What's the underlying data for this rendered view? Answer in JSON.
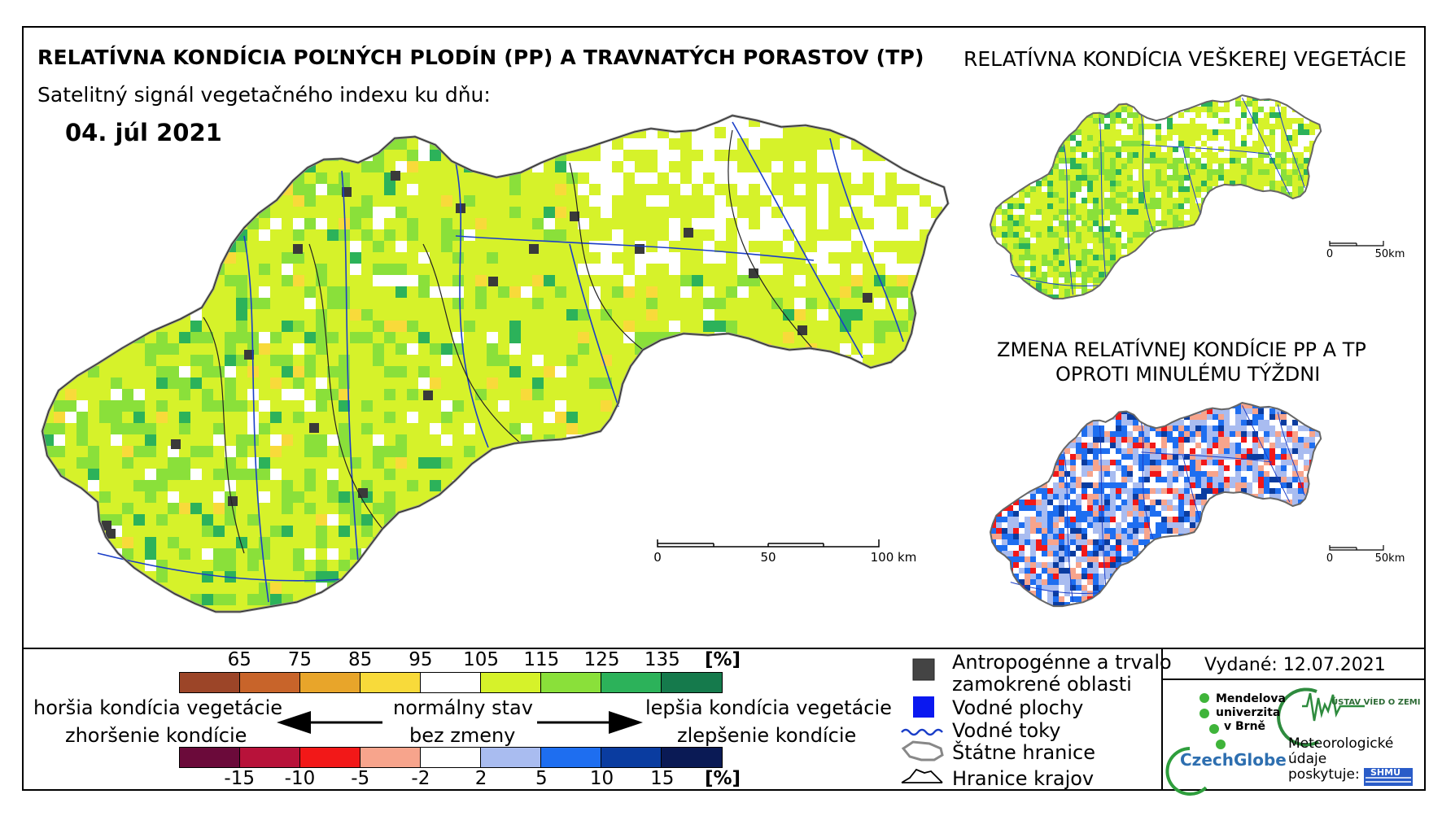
{
  "header": {
    "title": "RELATÍVNA KONDÍCIA POĽNÝCH PLODÍN (PP) A TRAVNATÝCH PORASTOV (TP)",
    "subtitle": "Satelitný signál vegetačného indexu ku dňu:",
    "date": "04. júl 2021"
  },
  "inset_vegetation": {
    "title": "RELATÍVNA KONDÍCIA VEŠKEREJ VEGETÁCIE",
    "scale_labels": [
      "0",
      "50km"
    ]
  },
  "inset_change": {
    "title_line1": "ZMENA RELATÍVNEJ KONDÍCIE PP A TP",
    "title_line2": "OPROTI MINULÉMU TÝŽDNI",
    "scale_labels": [
      "0",
      "50km"
    ]
  },
  "main_scale": {
    "labels": [
      "0",
      "50",
      "100 km"
    ]
  },
  "legend_condition": {
    "labels": [
      "65",
      "75",
      "85",
      "95",
      "105",
      "115",
      "125",
      "135"
    ],
    "unit": "[%]",
    "colors": [
      "#9c4528",
      "#c8642a",
      "#e8a52a",
      "#f8da3a",
      "#ffffff",
      "#d6f22a",
      "#8ae03a",
      "#2cb25a",
      "#157a4c"
    ]
  },
  "legend_change": {
    "labels": [
      "-15",
      "-10",
      "-5",
      "-2",
      "2",
      "5",
      "10",
      "15"
    ],
    "unit": "[%]",
    "colors": [
      "#6b0a3a",
      "#b8123a",
      "#f21818",
      "#f7a48c",
      "#ffffff",
      "#a9bcf0",
      "#1e6ef0",
      "#0a3ca0",
      "#0a1a55"
    ]
  },
  "arrows": {
    "worse_line1": "horšia kondícia vegetácie",
    "worse_line2": "zhoršenie kondície",
    "normal_line1": "normálny stav",
    "normal_line2": "bez zmeny",
    "better_line1": "lepšia kondícia vegetácie",
    "better_line2": "zlepšenie kondície"
  },
  "legend_symbols": {
    "anthropogenic_line1": "Antropogénne a trvalo",
    "anthropogenic_line2": "zamokrené oblasti",
    "water_bodies": "Vodné plochy",
    "rivers": "Vodné toky",
    "state_border": "Štátne hranice",
    "regions_border": "Hranice krajov"
  },
  "footer": {
    "issued": "Vydané: 12.07.2021",
    "mendel_line1": "Mendelova",
    "mendel_line2": "univerzita",
    "mendel_line3": "v Brně",
    "czechglobe": "CzechGlobe",
    "ustav": "ÚSTAV VÍED O ZEMI",
    "meteo_line1": "Meteorologické",
    "meteo_line2": "údaje",
    "meteo_line3": "poskytuje:",
    "shmu": "SHMÚ"
  }
}
